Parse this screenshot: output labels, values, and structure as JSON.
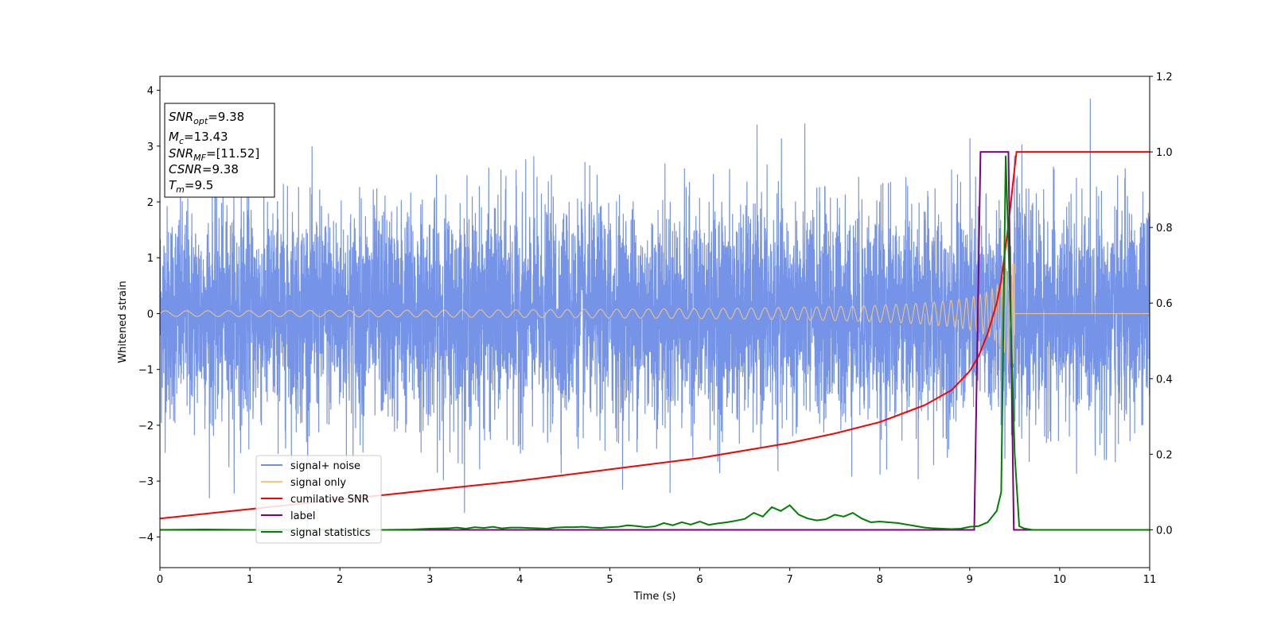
{
  "chart_data": {
    "type": "line",
    "xlabel": "Time (s)",
    "ylabel": "Whitened strain",
    "xlim": [
      0,
      11
    ],
    "ylim_left": [
      -4.55,
      4.25
    ],
    "ylim_right": [
      -0.1,
      1.2
    ],
    "x_ticks": [
      0,
      1,
      2,
      3,
      4,
      5,
      6,
      7,
      8,
      9,
      10,
      11
    ],
    "y_left_ticks": [
      4,
      3,
      2,
      1,
      0,
      -1,
      -2,
      -3,
      -4
    ],
    "y_left_tick_labels": [
      "4",
      "3",
      "2",
      "1",
      "0",
      "−1",
      "−2",
      "−3",
      "−4"
    ],
    "y_right_ticks": [
      1.2,
      1.0,
      0.8,
      0.6,
      0.4,
      0.2,
      0.0
    ],
    "y_right_tick_labels": [
      "1.2",
      "1.0",
      "0.8",
      "0.6",
      "0.4",
      "0.2",
      "0.0"
    ],
    "grid": false,
    "legend_placement": "lower-left",
    "info_box": {
      "snr_opt_main": "SNR",
      "snr_opt_sub": "opt",
      "snr_opt_val": "=9.38",
      "mc_main": "M",
      "mc_sub": "c",
      "mc_val": "=13.43",
      "snr_mf_main": "SNR",
      "snr_mf_sub": "MF",
      "snr_mf_val": "=[11.52]",
      "csnr_main": "CSNR",
      "csnr_val": "=9.38",
      "tm_main": "T",
      "tm_sub": "m",
      "tm_val": "=9.5"
    },
    "series": [
      {
        "name": "signal+ noise",
        "axis": "left",
        "color": "#6f8ee6",
        "kind": "noise",
        "sigma": 0.95,
        "x_range": [
          0,
          11
        ]
      },
      {
        "name": "signal only",
        "axis": "left",
        "color": "#f5c77e",
        "kind": "chirp",
        "merger_time": 9.5,
        "peak_amplitude": 0.9
      },
      {
        "name": "cumilative SNR",
        "axis": "right",
        "color": "#ff0000",
        "x": [
          0,
          1,
          2,
          3,
          4,
          5,
          6,
          7,
          7.5,
          8,
          8.5,
          8.8,
          9.0,
          9.1,
          9.2,
          9.3,
          9.35,
          9.4,
          9.45,
          9.5,
          9.52,
          11
        ],
        "y": [
          0.03,
          0.055,
          0.08,
          0.105,
          0.13,
          0.16,
          0.19,
          0.23,
          0.255,
          0.285,
          0.33,
          0.37,
          0.42,
          0.46,
          0.52,
          0.6,
          0.66,
          0.75,
          0.85,
          0.96,
          1.0,
          1.0
        ]
      },
      {
        "name": "label",
        "axis": "right",
        "color": "#800080",
        "x": [
          0,
          9.05,
          9.12,
          9.43,
          9.49,
          11
        ],
        "y": [
          0,
          0,
          1,
          1,
          0,
          0
        ]
      },
      {
        "name": "signal statistics",
        "axis": "right",
        "color": "#008000",
        "x": [
          0,
          0.5,
          1,
          1.5,
          2,
          2.5,
          2.8,
          3,
          3.2,
          3.3,
          3.4,
          3.5,
          3.6,
          3.7,
          3.8,
          3.9,
          4,
          4.1,
          4.2,
          4.3,
          4.4,
          4.5,
          4.6,
          4.7,
          4.8,
          4.9,
          5,
          5.1,
          5.2,
          5.3,
          5.4,
          5.5,
          5.6,
          5.7,
          5.8,
          5.9,
          6,
          6.1,
          6.2,
          6.3,
          6.4,
          6.5,
          6.6,
          6.7,
          6.8,
          6.9,
          7,
          7.1,
          7.2,
          7.3,
          7.4,
          7.5,
          7.6,
          7.7,
          7.8,
          7.9,
          8,
          8.1,
          8.2,
          8.3,
          8.4,
          8.5,
          8.6,
          8.7,
          8.8,
          8.9,
          9,
          9.1,
          9.2,
          9.3,
          9.35,
          9.4,
          9.45,
          9.5,
          9.55,
          9.6,
          9.7,
          10,
          10.5,
          11
        ],
        "y": [
          0.0,
          0.001,
          0.0,
          0.0,
          0.0,
          0.0,
          0.001,
          0.003,
          0.004,
          0.006,
          0.003,
          0.007,
          0.005,
          0.008,
          0.004,
          0.006,
          0.006,
          0.005,
          0.004,
          0.003,
          0.006,
          0.007,
          0.007,
          0.008,
          0.006,
          0.005,
          0.007,
          0.008,
          0.012,
          0.01,
          0.007,
          0.009,
          0.018,
          0.012,
          0.02,
          0.014,
          0.022,
          0.013,
          0.017,
          0.02,
          0.024,
          0.029,
          0.045,
          0.035,
          0.06,
          0.05,
          0.065,
          0.04,
          0.03,
          0.025,
          0.028,
          0.04,
          0.035,
          0.045,
          0.03,
          0.02,
          0.022,
          0.02,
          0.018,
          0.014,
          0.01,
          0.006,
          0.004,
          0.003,
          0.002,
          0.003,
          0.008,
          0.01,
          0.02,
          0.05,
          0.1,
          0.99,
          0.6,
          0.2,
          0.01,
          0.004,
          0.0,
          0.0,
          0.0,
          0.0
        ]
      }
    ]
  }
}
